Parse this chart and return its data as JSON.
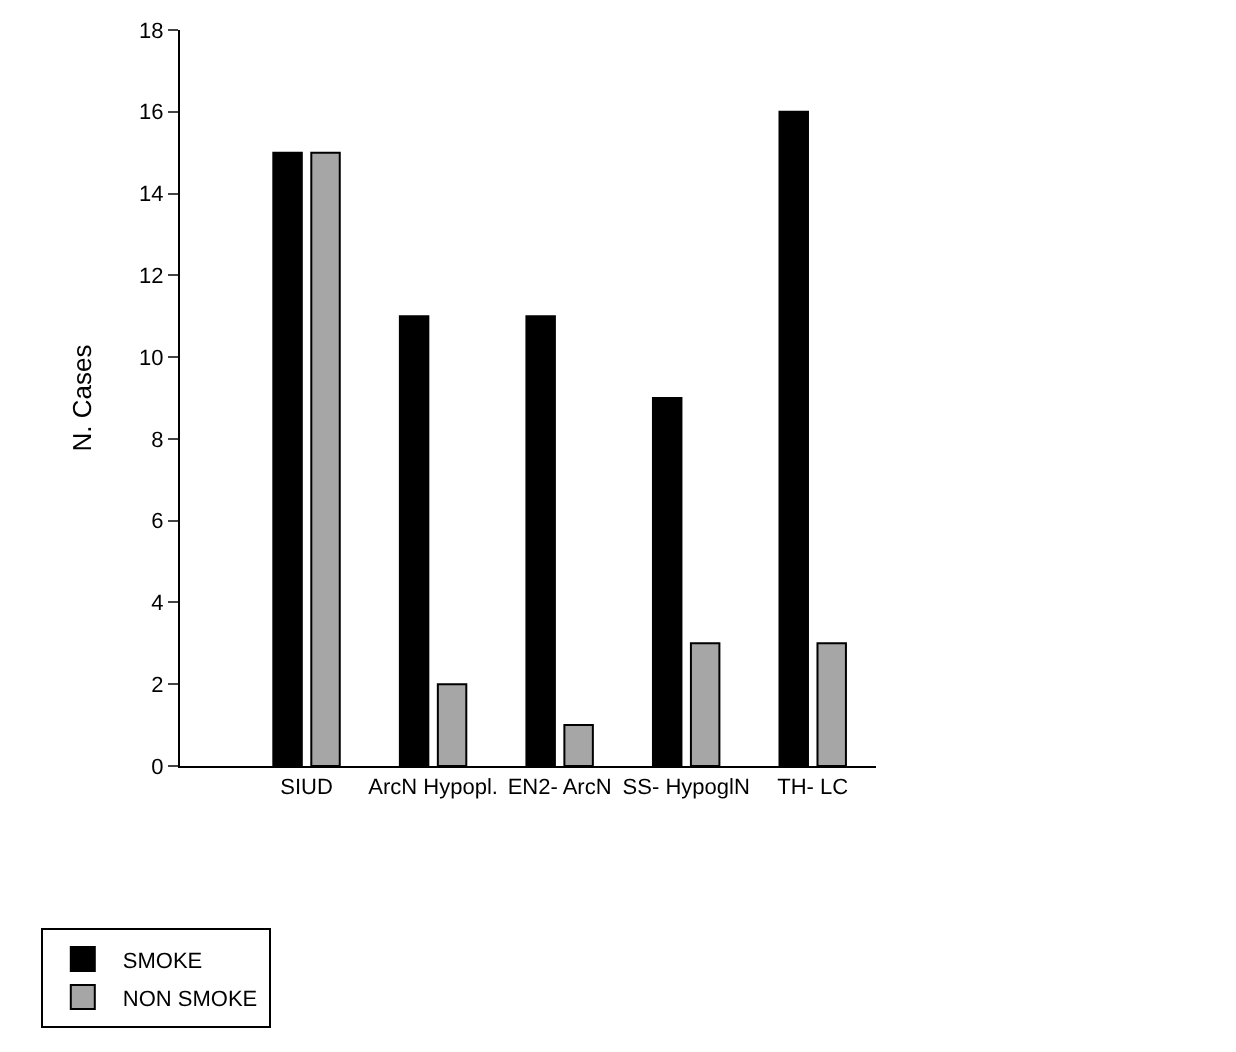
{
  "chart_data": {
    "type": "bar",
    "ylabel": "N. Cases",
    "categories": [
      "SIUD",
      "ArcN Hypopl.",
      "EN2- ArcN",
      "SS- HypoglN",
      "TH- LC"
    ],
    "series": [
      {
        "name": "SMOKE",
        "color": "#000000",
        "values": [
          15,
          11,
          11,
          9,
          16
        ]
      },
      {
        "name": "NON SMOKE",
        "color": "#a6a6a6",
        "values": [
          15,
          2,
          1,
          3,
          3
        ]
      }
    ],
    "ylim": [
      0,
      18
    ],
    "yticks": [
      0,
      2,
      4,
      6,
      8,
      10,
      12,
      14,
      16,
      18
    ],
    "grid": false,
    "legend": "bottom left"
  }
}
